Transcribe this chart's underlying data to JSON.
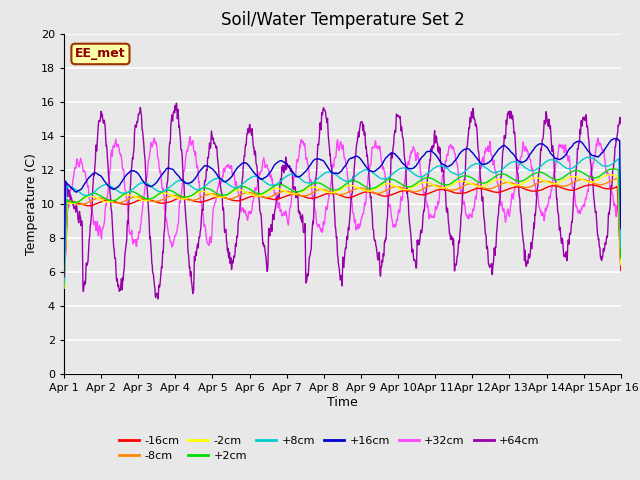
{
  "title": "Soil/Water Temperature Set 2",
  "xlabel": "Time",
  "ylabel": "Temperature (C)",
  "ylim": [
    0,
    20
  ],
  "yticks": [
    0,
    2,
    4,
    6,
    8,
    10,
    12,
    14,
    16,
    18,
    20
  ],
  "x_tick_labels": [
    "Apr 1",
    "Apr 2",
    "Apr 3",
    "Apr 4",
    "Apr 5",
    "Apr 6",
    "Apr 7",
    "Apr 8",
    "Apr 9",
    "Apr 10",
    "Apr 11",
    "Apr 12",
    "Apr 13",
    "Apr 14",
    "Apr 15",
    "Apr 16"
  ],
  "series_colors": {
    "-16cm": "#ff0000",
    "-8cm": "#ff8800",
    "-2cm": "#ffff00",
    "+2cm": "#00dd00",
    "+8cm": "#00cccc",
    "+16cm": "#0000cc",
    "+32cm": "#ff44ff",
    "+64cm": "#9900aa"
  },
  "annotation_text": "EE_met",
  "annotation_box_color": "#ffffaa",
  "annotation_border_color": "#993300",
  "bg_color": "#e8e8e8",
  "plot_bg_color": "#e8e8e8",
  "grid_color": "#ffffff",
  "title_fontsize": 12,
  "axis_label_fontsize": 9,
  "tick_fontsize": 8,
  "legend_fontsize": 8
}
